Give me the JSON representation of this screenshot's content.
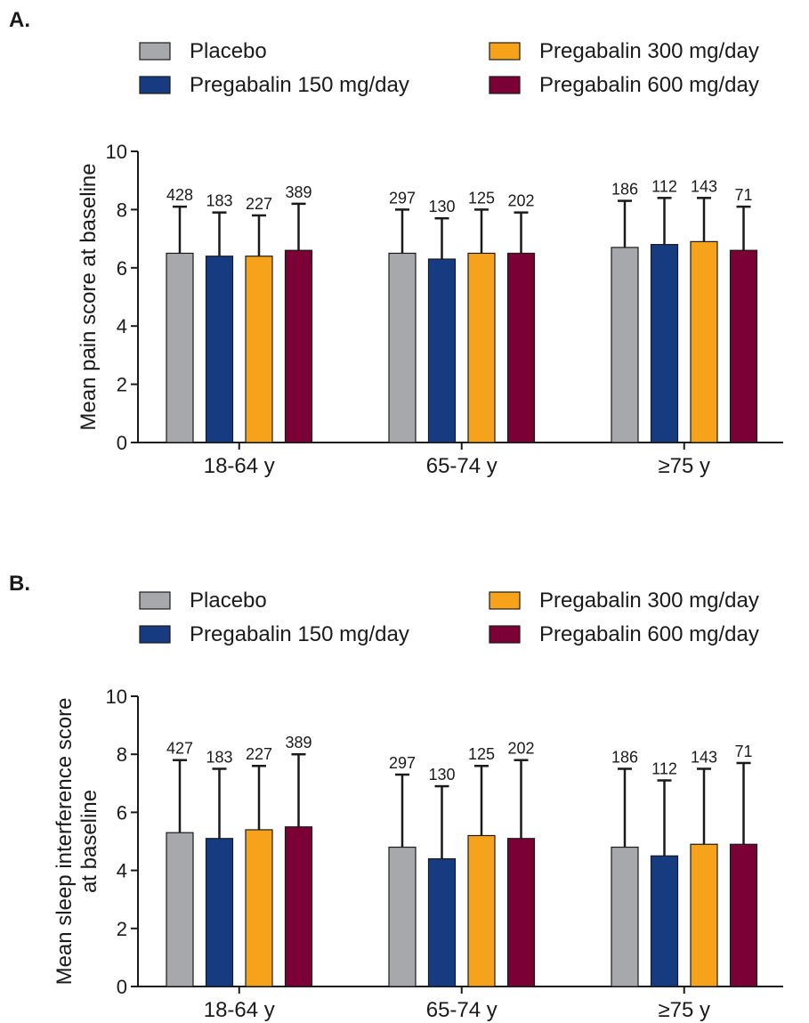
{
  "chart_data": [
    {
      "type": "bar",
      "panel_label": "A.",
      "categories": [
        "18-64 y",
        "65-74 y",
        "≥75 y"
      ],
      "ylabel": "Mean pain score at baseline",
      "ylim": [
        0,
        10
      ],
      "yticks": [
        0,
        2,
        4,
        6,
        8,
        10
      ],
      "legend_position": "top",
      "series": [
        {
          "name": "Placebo",
          "color": "#a7a8ab",
          "values": [
            6.5,
            6.5,
            6.7
          ],
          "error_upper": [
            8.1,
            8.0,
            8.3
          ],
          "n": [
            "428",
            "297",
            "186"
          ]
        },
        {
          "name": "Pregabalin 150 mg/day",
          "color": "#173b80",
          "values": [
            6.4,
            6.3,
            6.8
          ],
          "error_upper": [
            7.9,
            7.7,
            8.4
          ],
          "n": [
            "183",
            "130",
            "112"
          ]
        },
        {
          "name": "Pregabalin 300 mg/day",
          "color": "#f7a21b",
          "values": [
            6.4,
            6.5,
            6.9
          ],
          "error_upper": [
            7.8,
            8.0,
            8.4
          ],
          "n": [
            "227",
            "125",
            "143"
          ]
        },
        {
          "name": "Pregabalin 600 mg/day",
          "color": "#7b0035",
          "values": [
            6.6,
            6.5,
            6.6
          ],
          "error_upper": [
            8.2,
            7.9,
            8.1
          ],
          "n": [
            "389",
            "202",
            "71"
          ]
        }
      ]
    },
    {
      "type": "bar",
      "panel_label": "B.",
      "categories": [
        "18-64 y",
        "65-74 y",
        "≥75 y"
      ],
      "ylabel": [
        "Mean sleep interference score",
        "at baseline"
      ],
      "ylim": [
        0,
        10
      ],
      "yticks": [
        0,
        2,
        4,
        6,
        8,
        10
      ],
      "legend_position": "top",
      "series": [
        {
          "name": "Placebo",
          "color": "#a7a8ab",
          "values": [
            5.3,
            4.8,
            4.8
          ],
          "error_upper": [
            7.8,
            7.3,
            7.5
          ],
          "n": [
            "427",
            "297",
            "186"
          ]
        },
        {
          "name": "Pregabalin 150 mg/day",
          "color": "#173b80",
          "values": [
            5.1,
            4.4,
            4.5
          ],
          "error_upper": [
            7.5,
            6.9,
            7.1
          ],
          "n": [
            "183",
            "130",
            "112"
          ]
        },
        {
          "name": "Pregabalin 300 mg/day",
          "color": "#f7a21b",
          "values": [
            5.4,
            5.2,
            4.9
          ],
          "error_upper": [
            7.6,
            7.6,
            7.5
          ],
          "n": [
            "227",
            "125",
            "143"
          ]
        },
        {
          "name": "Pregabalin 600 mg/day",
          "color": "#7b0035",
          "values": [
            5.5,
            5.1,
            4.9
          ],
          "error_upper": [
            8.0,
            7.8,
            7.7
          ],
          "n": [
            "389",
            "202",
            "71"
          ]
        }
      ]
    }
  ]
}
